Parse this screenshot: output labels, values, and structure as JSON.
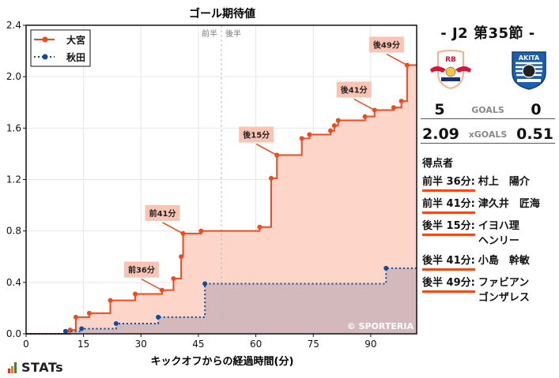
{
  "chart_data": {
    "type": "line",
    "subtype": "step",
    "title": "ゴール期待値",
    "xlabel": "キックオフからの経過時間(分)",
    "ylabel": "",
    "xlim": [
      0,
      102
    ],
    "ylim": [
      0,
      2.4
    ],
    "x_ticks": [
      0,
      15,
      30,
      45,
      60,
      75,
      90
    ],
    "y_ticks": [
      0.0,
      0.4,
      0.8,
      1.2,
      1.6,
      2.0,
      2.4
    ],
    "y_tick_labels": [
      "0.0",
      "0.4",
      "0.8",
      "1.2",
      "1.6",
      "2.0",
      "2.4"
    ],
    "grid": true,
    "legend_position": "upper left",
    "halftime_marker": {
      "x": 51,
      "label_left": "前半",
      "label_right": "後半"
    },
    "series": [
      {
        "name": "大宮",
        "color": "#f04a1d",
        "fill": "#fdd5c9",
        "style": "solid",
        "x": [
          11.5,
          13,
          16.5,
          22,
          28.5,
          35.5,
          38.5,
          40.5,
          41,
          45.7,
          61,
          64,
          65.5,
          72,
          74,
          79.5,
          80.5,
          81.5,
          88.5,
          91,
          96,
          98,
          99.5,
          102
        ],
        "y": [
          0.03,
          0.13,
          0.16,
          0.26,
          0.31,
          0.34,
          0.43,
          0.6,
          0.78,
          0.8,
          0.83,
          1.21,
          1.39,
          1.52,
          1.55,
          1.58,
          1.62,
          1.66,
          1.69,
          1.74,
          1.76,
          1.81,
          2.09,
          2.09
        ]
      },
      {
        "name": "秋田",
        "color": "#0b4f9c",
        "fill": "#d3b9bc",
        "style": "dotted",
        "x": [
          10.3,
          14.5,
          23.5,
          34.5,
          46.7,
          94,
          102
        ],
        "y": [
          0.02,
          0.04,
          0.08,
          0.13,
          0.39,
          0.51,
          0.51
        ]
      }
    ],
    "annotations": [
      {
        "label": "前36分",
        "x": 35.5,
        "y": 0.34
      },
      {
        "label": "前41分",
        "x": 41,
        "y": 0.78
      },
      {
        "label": "後15分",
        "x": 65.5,
        "y": 1.39
      },
      {
        "label": "後41分",
        "x": 91,
        "y": 1.74
      },
      {
        "label": "後49分",
        "x": 99.5,
        "y": 2.09
      }
    ],
    "watermark": "© SPORTERIA"
  },
  "sidebar": {
    "round_title": "- J2 第35節 -",
    "home_logo": "rb-omiya-ardija-crest",
    "away_logo": "akita-blaublitz-crest",
    "home_logo_text": "RB",
    "away_logo_text": "AKITA",
    "goals_label": "GOALS",
    "home_goals": "5",
    "away_goals": "0",
    "xgoals_label": "xGOALS",
    "home_xg": "2.09",
    "away_xg": "0.51",
    "scorers_title": "得点者",
    "scorers": [
      {
        "time": "前半 36分:",
        "name": "村上　陽介"
      },
      {
        "time": "前半 41分:",
        "name": "津久井　匠海"
      },
      {
        "time": "後半 15分:",
        "name": "イヨハ理\nヘンリー"
      },
      {
        "time": "後半 41分:",
        "name": "小島　幹敏"
      },
      {
        "time": "後半 49分:",
        "name": "ファビアン\nゴンザレス"
      }
    ]
  },
  "footer": {
    "brand": "STATs",
    "bar_colors": [
      "#e8321e",
      "#f07b1d",
      "#2e8b3c"
    ]
  }
}
